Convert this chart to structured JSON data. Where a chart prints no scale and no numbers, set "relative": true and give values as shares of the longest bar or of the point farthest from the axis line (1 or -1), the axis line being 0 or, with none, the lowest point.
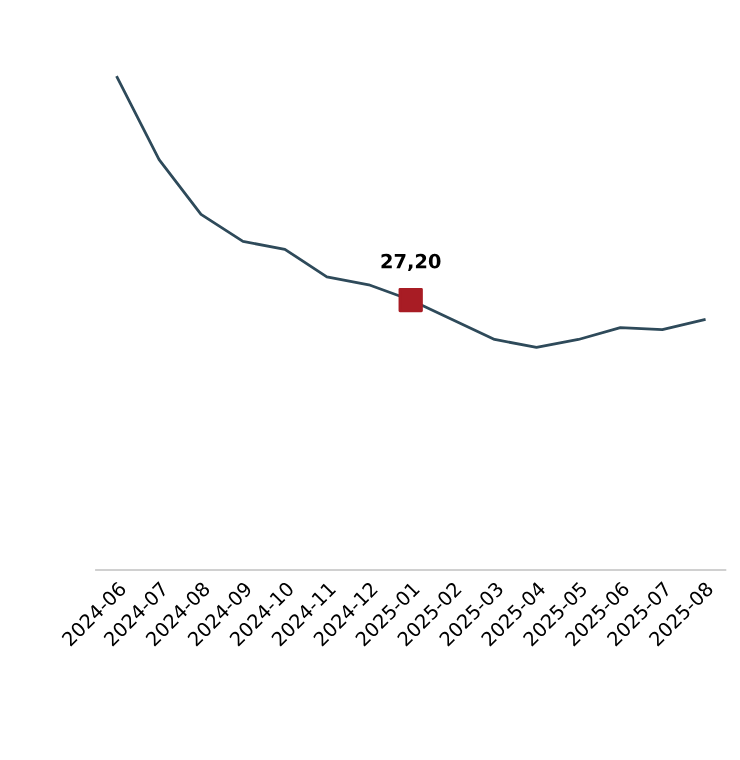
{
  "chart_data": {
    "type": "line",
    "relative": true,
    "grid": false,
    "categories": [
      "2024-06",
      "2024-07",
      "2024-08",
      "2024-09",
      "2024-10",
      "2024-11",
      "2024-12",
      "2025-01",
      "2025-02",
      "2025-03",
      "2025-04",
      "2025-05",
      "2025-06",
      "2025-07",
      "2025-08"
    ],
    "series": [
      {
        "color": "#2e4a5a",
        "marker": "none",
        "values": [
          1,
          0.833,
          0.722,
          0.667,
          0.651,
          0.595,
          0.579,
          0.548,
          0.508,
          0.468,
          0.452,
          0.468,
          0.492,
          0.488,
          0.508
        ]
      },
      {
        "type": "scatter",
        "color": "#a81c24",
        "marker": "square",
        "values": [
          null,
          null,
          null,
          null,
          null,
          null,
          null,
          0.548,
          null,
          null,
          null,
          null,
          null,
          null,
          null
        ]
      }
    ],
    "annotations": [
      {
        "text": "27,20",
        "x": "2025-01",
        "y": 0.548
      }
    ]
  }
}
